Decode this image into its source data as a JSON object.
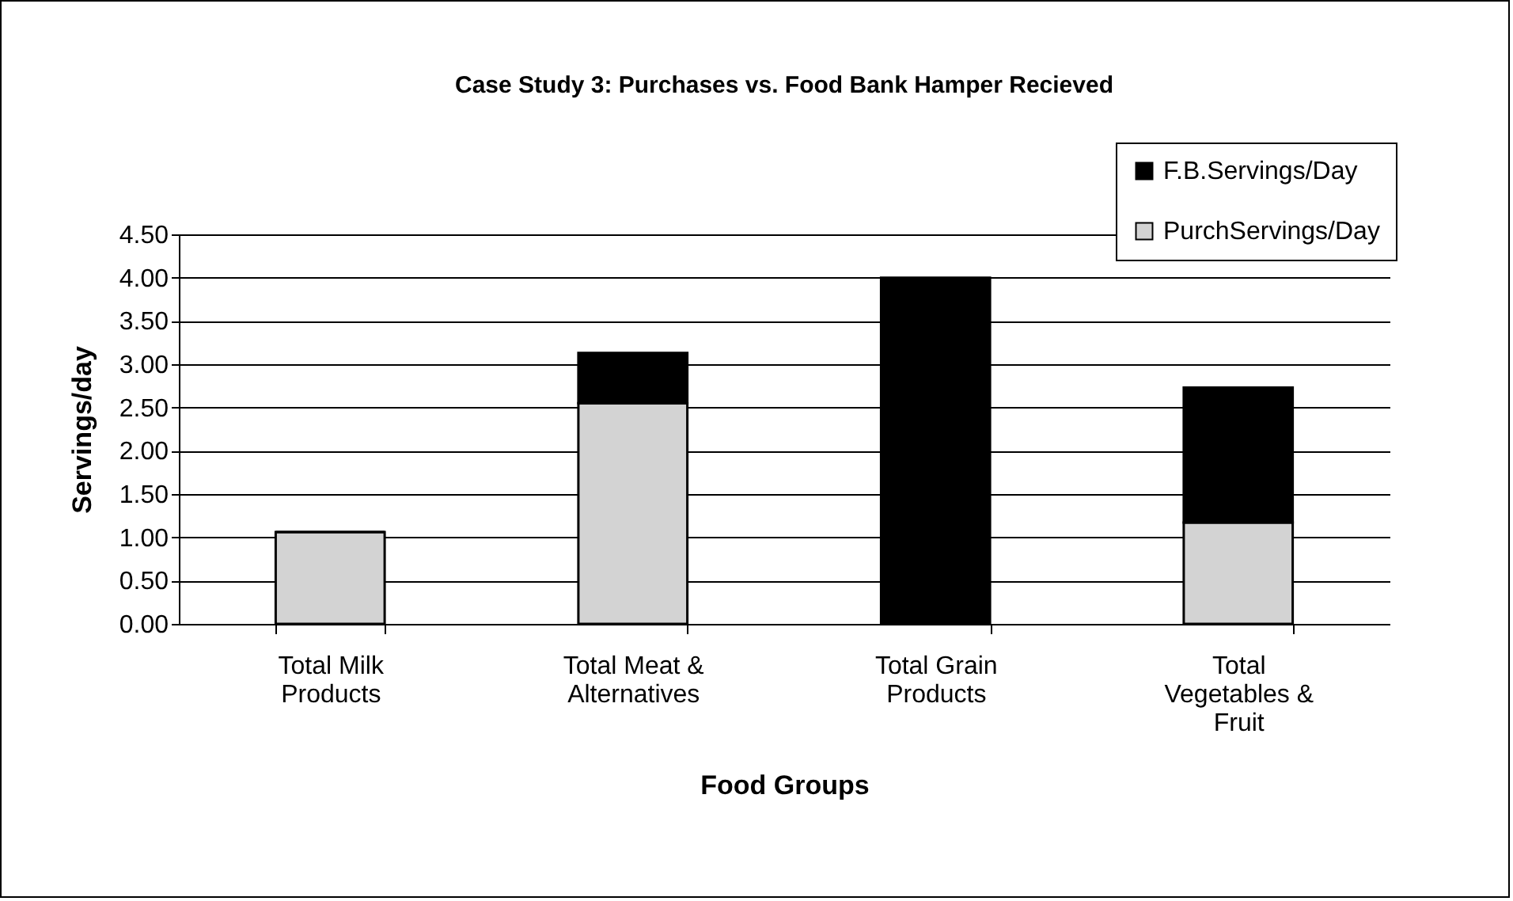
{
  "chart_data": {
    "type": "bar",
    "title": "Case Study 3: Purchases vs. Food Bank Hamper Recieved",
    "xlabel": "Food Groups",
    "ylabel": "Servings/day",
    "categories": [
      "Total Milk Products",
      "Total Meat & Alternatives",
      "Total Grain Products",
      "Total Vegetables & Fruit"
    ],
    "stacked": true,
    "series": [
      {
        "name": "PurchServings/Day",
        "color": "#d3d3d3",
        "values": [
          1.06,
          2.55,
          0,
          1.17
        ]
      },
      {
        "name": "F.B.Servings/Day",
        "color": "#000000",
        "values": [
          0,
          0.58,
          4.0,
          1.56
        ]
      }
    ],
    "ylim": [
      0,
      4.5
    ],
    "yticks": [
      {
        "value": 0,
        "label": "0.00"
      },
      {
        "value": 0.5,
        "label": "0.50"
      },
      {
        "value": 1,
        "label": "1.00"
      },
      {
        "value": 1.5,
        "label": "1.50"
      },
      {
        "value": 2,
        "label": "2.00"
      },
      {
        "value": 2.5,
        "label": "2.50"
      },
      {
        "value": 3,
        "label": "3.00"
      },
      {
        "value": 3.5,
        "label": "3.50"
      },
      {
        "value": 4,
        "label": "4.00"
      },
      {
        "value": 4.5,
        "label": "4.50"
      }
    ],
    "grid": "y",
    "legend": "top right"
  }
}
